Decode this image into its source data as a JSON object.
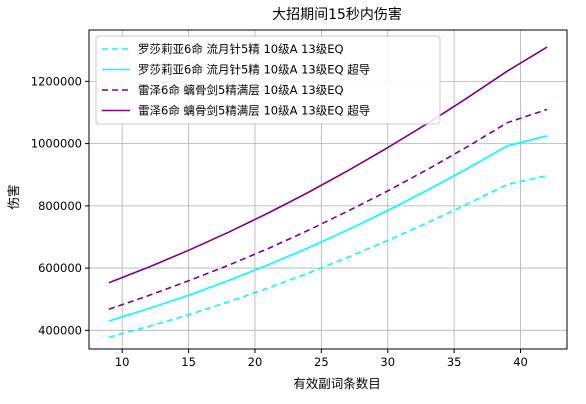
{
  "chart_data": {
    "type": "line",
    "title": "大招期间15秒内伤害",
    "xlabel": "有效副词条数目",
    "ylabel": "伤害",
    "xlim": [
      7.5,
      43.5
    ],
    "ylim": [
      340000,
      1365000
    ],
    "xticks": [
      10,
      15,
      20,
      25,
      30,
      35,
      40
    ],
    "yticks": [
      400000,
      600000,
      800000,
      1000000,
      1200000
    ],
    "grid": true,
    "legend_position": "top-left",
    "x": [
      9,
      12,
      15,
      18,
      21,
      24,
      27,
      30,
      33,
      36,
      39,
      42
    ],
    "series": [
      {
        "name": "罗莎莉亚6命 流月针5精 10级A 13级EQ",
        "color": "#00ffff",
        "style": "dashed",
        "values": [
          378000,
          413000,
          450000,
          492000,
          536000,
          584000,
          635000,
          689000,
          746000,
          806000,
          869000,
          897000
        ]
      },
      {
        "name": "罗莎莉亚6命 流月针5精 10级A 13级EQ 超导",
        "color": "#00ffff",
        "style": "solid",
        "values": [
          430000,
          470000,
          513000,
          560000,
          611000,
          665000,
          723000,
          785000,
          851000,
          920000,
          993000,
          1025000
        ]
      },
      {
        "name": "雷泽6命 螭骨剑5精满层 10级A 13级EQ",
        "color": "#800080",
        "style": "dashed",
        "values": [
          468000,
          512000,
          559000,
          609000,
          663000,
          721000,
          783000,
          848000,
          917000,
          990000,
          1067000,
          1110000
        ]
      },
      {
        "name": "雷泽6命 螭骨剑5精满层 10级A 13级EQ 超导",
        "color": "#800080",
        "style": "solid",
        "values": [
          553000,
          603000,
          657000,
          715000,
          777000,
          843000,
          913000,
          987000,
          1065000,
          1147000,
          1233000,
          1310000
        ]
      }
    ]
  }
}
